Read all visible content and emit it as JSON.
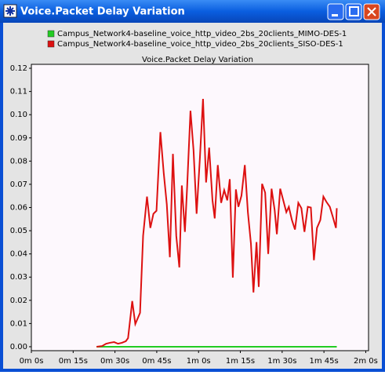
{
  "window_title": "Voice.Packet Delay Variation",
  "chart_data": {
    "type": "line",
    "title": "Voice.Packet Delay Variation",
    "grid": false,
    "legend": "top",
    "xlim": [
      0,
      121
    ],
    "ylim": [
      -0.0017,
      0.1217
    ],
    "xticks": [
      {
        "value": 0,
        "label": "0m 0s"
      },
      {
        "value": 15,
        "label": "0m 15s"
      },
      {
        "value": 30,
        "label": "0m 30s"
      },
      {
        "value": 45,
        "label": "0m 45s"
      },
      {
        "value": 60,
        "label": "1m 0s"
      },
      {
        "value": 75,
        "label": "1m 15s"
      },
      {
        "value": 90,
        "label": "1m 30s"
      },
      {
        "value": 105,
        "label": "1m 45s"
      },
      {
        "value": 120,
        "label": "2m 0s"
      }
    ],
    "yticks": [
      {
        "value": 0,
        "label": "0.00"
      },
      0.01,
      0.02,
      0.03,
      0.04,
      0.05,
      0.06,
      0.07,
      0.08,
      0.09,
      {
        "value": 0.1,
        "label": "0.10"
      },
      0.11,
      0.12
    ],
    "series": [
      {
        "name": "Campus_Network4-baseline_voice_http_video_2bs_20clients_MIMO-DES-1",
        "color": "#22cc22",
        "x": [
          23.4,
          109.6
        ],
        "values": [
          0,
          0
        ]
      },
      {
        "name": "Campus_Network4-baseline_voice_http_video_2bs_20clients_SISO-DES-1",
        "color": "#dd1111",
        "x": [
          23.4,
          25.4,
          26.8,
          28.2,
          29.7,
          31.1,
          32.5,
          33.9,
          34.7,
          36.2,
          37.3,
          39.0,
          40.1,
          41.5,
          42.7,
          43.8,
          44.9,
          46.3,
          47.5,
          48.6,
          49.7,
          50.8,
          52.0,
          53.1,
          54.0,
          55.1,
          55.9,
          57.1,
          58.2,
          59.3,
          60.5,
          61.6,
          62.7,
          63.8,
          65.0,
          65.8,
          66.9,
          68.1,
          69.2,
          70.3,
          71.2,
          72.3,
          73.4,
          74.3,
          75.4,
          76.6,
          77.7,
          78.8,
          79.7,
          80.8,
          81.6,
          82.8,
          83.9,
          85.0,
          86.2,
          87.3,
          88.1,
          89.3,
          90.4,
          91.5,
          92.4,
          93.5,
          94.6,
          95.8,
          96.9,
          98.0,
          99.2,
          100.3,
          101.4,
          102.5,
          103.7,
          104.8,
          105.9,
          107.1,
          108.2,
          109.3,
          109.6
        ],
        "values": [
          0,
          0.0003,
          0.0013,
          0.0017,
          0.002,
          0.0013,
          0.0017,
          0.0024,
          0.0037,
          0.0197,
          0.0098,
          0.0146,
          0.0478,
          0.0647,
          0.0512,
          0.0573,
          0.0586,
          0.0925,
          0.0749,
          0.0614,
          0.0386,
          0.0831,
          0.0478,
          0.0342,
          0.0695,
          0.0495,
          0.0688,
          0.1017,
          0.0847,
          0.0573,
          0.0817,
          0.1068,
          0.0708,
          0.0858,
          0.0631,
          0.0553,
          0.0783,
          0.062,
          0.0675,
          0.0631,
          0.0722,
          0.0298,
          0.0678,
          0.0603,
          0.0651,
          0.0783,
          0.058,
          0.0444,
          0.0234,
          0.0451,
          0.0258,
          0.0702,
          0.0664,
          0.04,
          0.0681,
          0.059,
          0.0485,
          0.0681,
          0.0631,
          0.058,
          0.0603,
          0.0546,
          0.0505,
          0.062,
          0.0597,
          0.0495,
          0.0603,
          0.06,
          0.0373,
          0.0512,
          0.0546,
          0.0647,
          0.0624,
          0.0603,
          0.0559,
          0.0512,
          0.0597
        ]
      }
    ]
  }
}
